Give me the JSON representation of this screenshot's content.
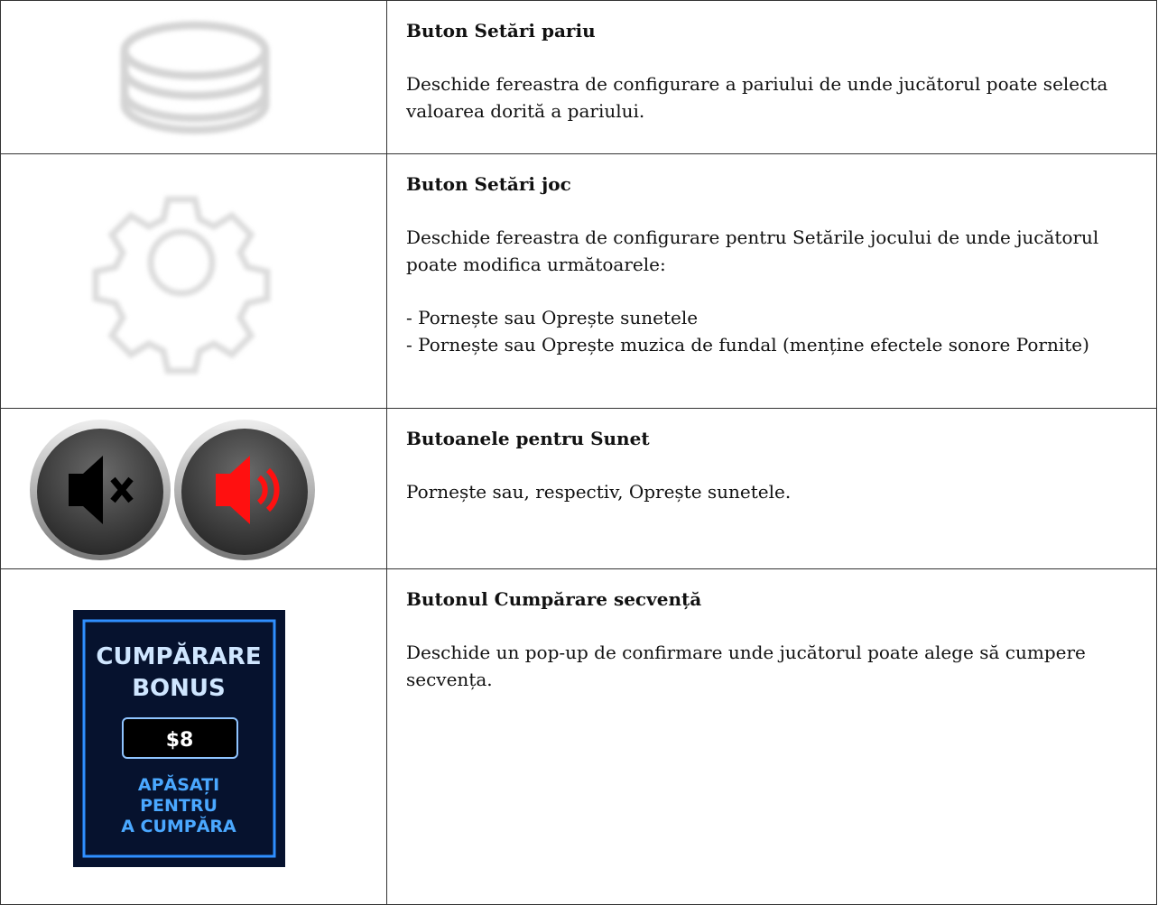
{
  "table": {
    "rows": [
      {
        "title": "Buton Setări pariu",
        "paragraphs": [
          [
            "Deschide fereastra de configurare a pariului de unde jucătorul poate selecta valoarea dorită a pariului."
          ]
        ]
      },
      {
        "title": "Buton Setări joc",
        "paragraphs": [
          [
            "Deschide fereastra de configurare pentru Setările jocului de unde jucătorul poate modifica următoarele:"
          ],
          [
            "- Pornește sau Oprește sunetele",
            "- Pornește sau Oprește muzica de fundal (menține efectele sonore Pornite)"
          ]
        ]
      },
      {
        "title": "Butoanele pentru Sunet",
        "paragraphs": [
          [
            "Pornește sau, respectiv, Oprește sunetele."
          ]
        ]
      },
      {
        "title": "Butonul Cumpărare secvență",
        "paragraphs": [
          [
            "Deschide un pop-up de confirmare unde jucătorul poate alege să cumpere secvența."
          ]
        ]
      }
    ]
  },
  "bonus_button": {
    "heading": [
      "CUMPĂRARE",
      "BONUS"
    ],
    "price": "$8",
    "action": [
      "APĂSAȚI",
      "PENTRU",
      "A CUMPĂRA"
    ]
  }
}
